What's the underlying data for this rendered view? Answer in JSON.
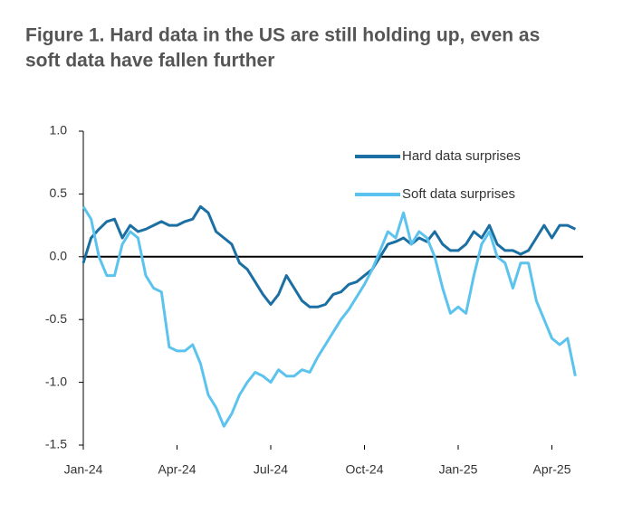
{
  "chart_data": {
    "type": "line",
    "title": [
      "Figure 1. Hard data in the US are still holding up, even as",
      "soft data have fallen further"
    ],
    "x": [
      0,
      0.25,
      0.5,
      0.75,
      1,
      1.25,
      1.5,
      1.75,
      2,
      2.25,
      2.5,
      2.75,
      3,
      3.25,
      3.5,
      3.75,
      4,
      4.25,
      4.5,
      4.75,
      5,
      5.25,
      5.5,
      5.75,
      6,
      6.25,
      6.5,
      6.75,
      7,
      7.25,
      7.5,
      7.75,
      8,
      8.25,
      8.5,
      8.75,
      9,
      9.25,
      9.5,
      9.75,
      10,
      10.25,
      10.5,
      10.75,
      11,
      11.25,
      11.5,
      11.75,
      12,
      12.25,
      12.5,
      12.75,
      13,
      13.25,
      13.5,
      13.75,
      14,
      14.25,
      14.5,
      14.75,
      15,
      15.25,
      15.5,
      15.75
    ],
    "series": [
      {
        "name": "Hard data surprises",
        "color": "#1b6fa3",
        "values": [
          -0.05,
          0.15,
          0.22,
          0.28,
          0.3,
          0.15,
          0.25,
          0.2,
          0.22,
          0.25,
          0.28,
          0.25,
          0.25,
          0.28,
          0.3,
          0.4,
          0.35,
          0.2,
          0.15,
          0.1,
          -0.05,
          -0.1,
          -0.2,
          -0.3,
          -0.38,
          -0.3,
          -0.15,
          -0.25,
          -0.35,
          -0.4,
          -0.4,
          -0.38,
          -0.3,
          -0.28,
          -0.22,
          -0.2,
          -0.15,
          -0.1,
          0.0,
          0.1,
          0.12,
          0.15,
          0.1,
          0.15,
          0.12,
          0.2,
          0.1,
          0.05,
          0.05,
          0.1,
          0.2,
          0.15,
          0.25,
          0.1,
          0.05,
          0.05,
          0.02,
          0.05,
          0.15,
          0.25,
          0.15,
          0.25,
          0.25,
          0.22
        ]
      },
      {
        "name": "Soft data surprises",
        "color": "#5cc3ee",
        "values": [
          0.4,
          0.3,
          0.0,
          -0.15,
          -0.15,
          0.1,
          0.2,
          0.15,
          -0.15,
          -0.25,
          -0.28,
          -0.72,
          -0.75,
          -0.75,
          -0.7,
          -0.85,
          -1.1,
          -1.2,
          -1.35,
          -1.25,
          -1.1,
          -1.0,
          -0.92,
          -0.95,
          -1.0,
          -0.9,
          -0.95,
          -0.95,
          -0.9,
          -0.92,
          -0.8,
          -0.7,
          -0.6,
          -0.5,
          -0.42,
          -0.32,
          -0.22,
          -0.1,
          0.05,
          0.2,
          0.15,
          0.35,
          0.1,
          0.2,
          0.15,
          0.0,
          -0.25,
          -0.45,
          -0.4,
          -0.45,
          -0.15,
          0.1,
          0.2,
          0.0,
          -0.05,
          -0.25,
          -0.05,
          -0.05,
          -0.35,
          -0.5,
          -0.65,
          -0.7,
          -0.65,
          -0.95
        ]
      }
    ],
    "xlim": [
      0,
      16
    ],
    "xticks": [
      {
        "value": 0,
        "label": "Jan-24"
      },
      {
        "value": 3,
        "label": "Apr-24"
      },
      {
        "value": 6,
        "label": "Jul-24"
      },
      {
        "value": 9,
        "label": "Oct-24"
      },
      {
        "value": 12,
        "label": "Jan-25"
      },
      {
        "value": 15,
        "label": "Apr-25"
      }
    ],
    "ylim": [
      -1.5,
      1.0
    ],
    "yticks": [
      {
        "value": 1.0,
        "label": "1.0"
      },
      0.5,
      {
        "value": 0,
        "label": "0.0"
      },
      -0.5,
      {
        "value": -1.0,
        "label": "-1.0"
      },
      -1.5
    ],
    "grid": false,
    "legend": "upper right"
  }
}
